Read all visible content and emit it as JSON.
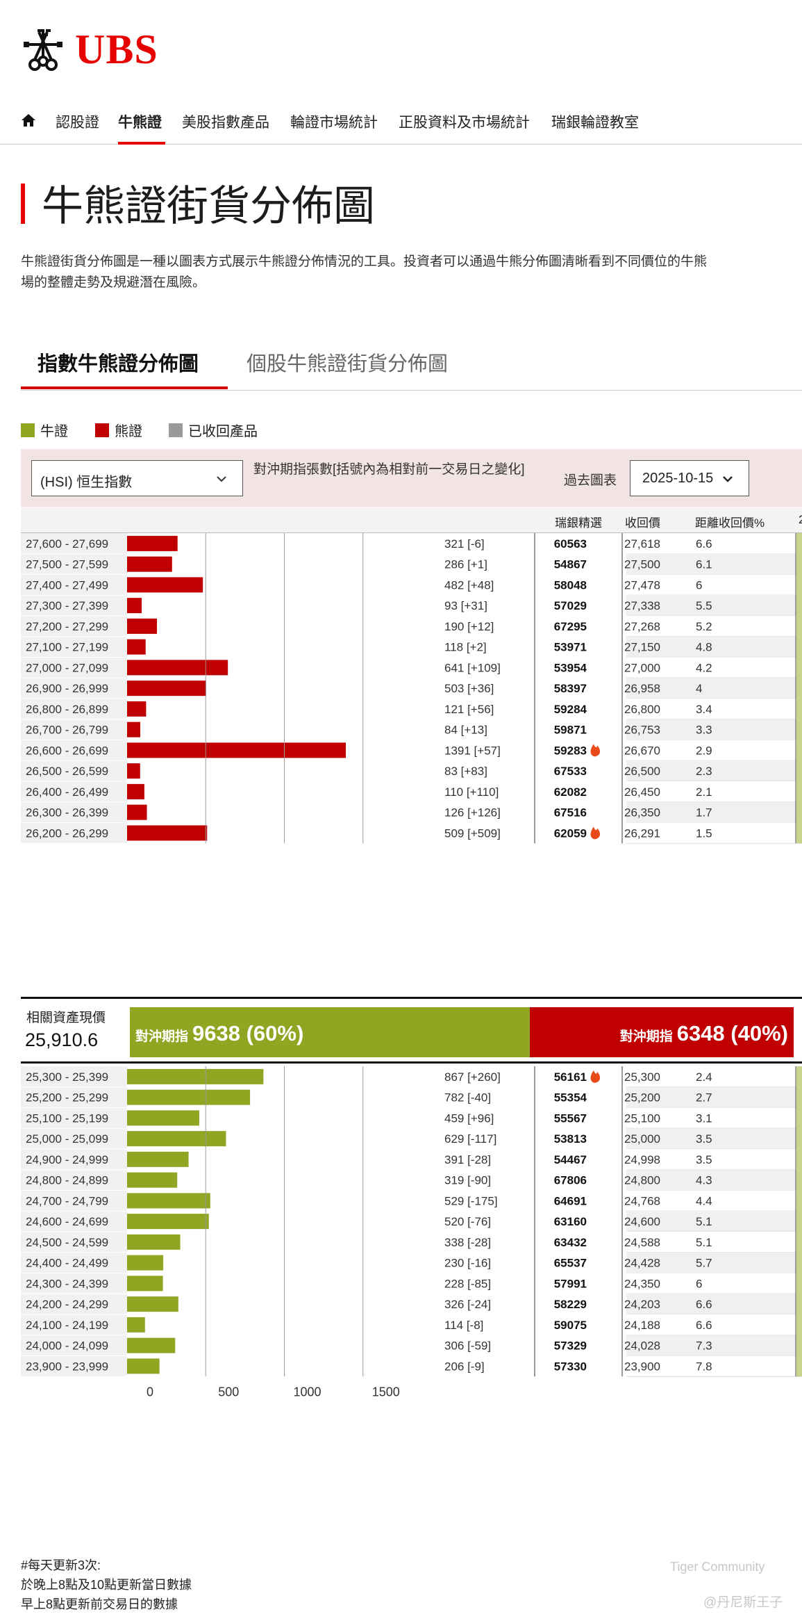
{
  "brand": {
    "logo_text": "UBS"
  },
  "nav": {
    "items": [
      "認股證",
      "牛熊證",
      "美股指數產品",
      "輪證市場統計",
      "正股資料及市場統計",
      "瑞銀輪證教室"
    ],
    "active": 1
  },
  "page": {
    "title": "牛熊證街貨分佈圖",
    "intro_line1": "牛熊證街貨分佈圖是一種以圖表方式展示牛熊證分佈情況的工具。投資者可以通過牛熊分佈圖清晰看到不同價位的牛熊",
    "intro_line2": "場的整體走勢及規避潛在風險。"
  },
  "tabs": {
    "index": "指數牛熊證分佈圖",
    "stock": "個股牛熊證街貨分佈圖"
  },
  "legend": {
    "bull": "牛證",
    "bear": "熊證",
    "called": "已收回產品",
    "bull_color": "#8fa623",
    "bear_color": "#c00000",
    "called_color": "#9a9a9a"
  },
  "filter": {
    "index_select": "(HSI) 恒生指數",
    "hedge_label": "對沖期指張數[括號內為相對前一交易日之變化]",
    "past_label": "過去圖表",
    "date_select": "2025-10-15"
  },
  "columns": {
    "pick": "瑞銀精選",
    "call_price": "收回價",
    "distance": "距離收回價%",
    "extra": "2"
  },
  "summary": {
    "label": "相關資產現價",
    "value": "25,910.6",
    "bull_label": "對沖期指",
    "bull_value": "9638 (60%)",
    "bull_count": 9638,
    "bear_label": "對沖期指",
    "bear_value": "6348 (40%)",
    "bear_count": 6348
  },
  "notes": {
    "line1": "#每天更新3次:",
    "line2": "於晚上8點及10點更新當日數據",
    "line3": "早上8點更新前交易日的數據"
  },
  "watermark": {
    "line1": "Tiger Community",
    "line2": "@丹尼斯王子"
  },
  "chart_data": {
    "type": "bar",
    "orientation": "horizontal",
    "xlim": [
      0,
      2000
    ],
    "x_ticks": [
      0,
      500,
      1000,
      1500
    ],
    "grid": true,
    "bear_rows": [
      {
        "range": "27,600 - 27,699",
        "value": 321,
        "change": "[-6]",
        "code": "60563",
        "hot": false,
        "call_price": "27,618",
        "distance": "6.6"
      },
      {
        "range": "27,500 - 27,599",
        "value": 286,
        "change": "[+1]",
        "code": "54867",
        "hot": false,
        "call_price": "27,500",
        "distance": "6.1"
      },
      {
        "range": "27,400 - 27,499",
        "value": 482,
        "change": "[+48]",
        "code": "58048",
        "hot": false,
        "call_price": "27,478",
        "distance": "6"
      },
      {
        "range": "27,300 - 27,399",
        "value": 93,
        "change": "[+31]",
        "code": "57029",
        "hot": false,
        "call_price": "27,338",
        "distance": "5.5"
      },
      {
        "range": "27,200 - 27,299",
        "value": 190,
        "change": "[+12]",
        "code": "67295",
        "hot": false,
        "call_price": "27,268",
        "distance": "5.2"
      },
      {
        "range": "27,100 - 27,199",
        "value": 118,
        "change": "[+2]",
        "code": "53971",
        "hot": false,
        "call_price": "27,150",
        "distance": "4.8"
      },
      {
        "range": "27,000 - 27,099",
        "value": 641,
        "change": "[+109]",
        "code": "53954",
        "hot": false,
        "call_price": "27,000",
        "distance": "4.2"
      },
      {
        "range": "26,900 - 26,999",
        "value": 503,
        "change": "[+36]",
        "code": "58397",
        "hot": false,
        "call_price": "26,958",
        "distance": "4"
      },
      {
        "range": "26,800 - 26,899",
        "value": 121,
        "change": "[+56]",
        "code": "59284",
        "hot": false,
        "call_price": "26,800",
        "distance": "3.4"
      },
      {
        "range": "26,700 - 26,799",
        "value": 84,
        "change": "[+13]",
        "code": "59871",
        "hot": false,
        "call_price": "26,753",
        "distance": "3.3"
      },
      {
        "range": "26,600 - 26,699",
        "value": 1391,
        "change": "[+57]",
        "code": "59283",
        "hot": true,
        "call_price": "26,670",
        "distance": "2.9"
      },
      {
        "range": "26,500 - 26,599",
        "value": 83,
        "change": "[+83]",
        "code": "67533",
        "hot": false,
        "call_price": "26,500",
        "distance": "2.3"
      },
      {
        "range": "26,400 - 26,499",
        "value": 110,
        "change": "[+110]",
        "code": "62082",
        "hot": false,
        "call_price": "26,450",
        "distance": "2.1"
      },
      {
        "range": "26,300 - 26,399",
        "value": 126,
        "change": "[+126]",
        "code": "67516",
        "hot": false,
        "call_price": "26,350",
        "distance": "1.7"
      },
      {
        "range": "26,200 - 26,299",
        "value": 509,
        "change": "[+509]",
        "code": "62059",
        "hot": true,
        "call_price": "26,291",
        "distance": "1.5"
      }
    ],
    "bull_rows": [
      {
        "range": "25,300 - 25,399",
        "value": 867,
        "change": "[+260]",
        "code": "56161",
        "hot": true,
        "call_price": "25,300",
        "distance": "2.4"
      },
      {
        "range": "25,200 - 25,299",
        "value": 782,
        "change": "[-40]",
        "code": "55354",
        "hot": false,
        "call_price": "25,200",
        "distance": "2.7"
      },
      {
        "range": "25,100 - 25,199",
        "value": 459,
        "change": "[+96]",
        "code": "55567",
        "hot": false,
        "call_price": "25,100",
        "distance": "3.1"
      },
      {
        "range": "25,000 - 25,099",
        "value": 629,
        "change": "[-117]",
        "code": "53813",
        "hot": false,
        "call_price": "25,000",
        "distance": "3.5"
      },
      {
        "range": "24,900 - 24,999",
        "value": 391,
        "change": "[-28]",
        "code": "54467",
        "hot": false,
        "call_price": "24,998",
        "distance": "3.5"
      },
      {
        "range": "24,800 - 24,899",
        "value": 319,
        "change": "[-90]",
        "code": "67806",
        "hot": false,
        "call_price": "24,800",
        "distance": "4.3"
      },
      {
        "range": "24,700 - 24,799",
        "value": 529,
        "change": "[-175]",
        "code": "64691",
        "hot": false,
        "call_price": "24,768",
        "distance": "4.4"
      },
      {
        "range": "24,600 - 24,699",
        "value": 520,
        "change": "[-76]",
        "code": "63160",
        "hot": false,
        "call_price": "24,600",
        "distance": "5.1"
      },
      {
        "range": "24,500 - 24,599",
        "value": 338,
        "change": "[-28]",
        "code": "63432",
        "hot": false,
        "call_price": "24,588",
        "distance": "5.1"
      },
      {
        "range": "24,400 - 24,499",
        "value": 230,
        "change": "[-16]",
        "code": "65537",
        "hot": false,
        "call_price": "24,428",
        "distance": "5.7"
      },
      {
        "range": "24,300 - 24,399",
        "value": 228,
        "change": "[-85]",
        "code": "57991",
        "hot": false,
        "call_price": "24,350",
        "distance": "6"
      },
      {
        "range": "24,200 - 24,299",
        "value": 326,
        "change": "[-24]",
        "code": "58229",
        "hot": false,
        "call_price": "24,203",
        "distance": "6.6"
      },
      {
        "range": "24,100 - 24,199",
        "value": 114,
        "change": "[-8]",
        "code": "59075",
        "hot": false,
        "call_price": "24,188",
        "distance": "6.6"
      },
      {
        "range": "24,000 - 24,099",
        "value": 306,
        "change": "[-59]",
        "code": "57329",
        "hot": false,
        "call_price": "24,028",
        "distance": "7.3"
      },
      {
        "range": "23,900 - 23,999",
        "value": 206,
        "change": "[-9]",
        "code": "57330",
        "hot": false,
        "call_price": "23,900",
        "distance": "7.8"
      }
    ]
  }
}
